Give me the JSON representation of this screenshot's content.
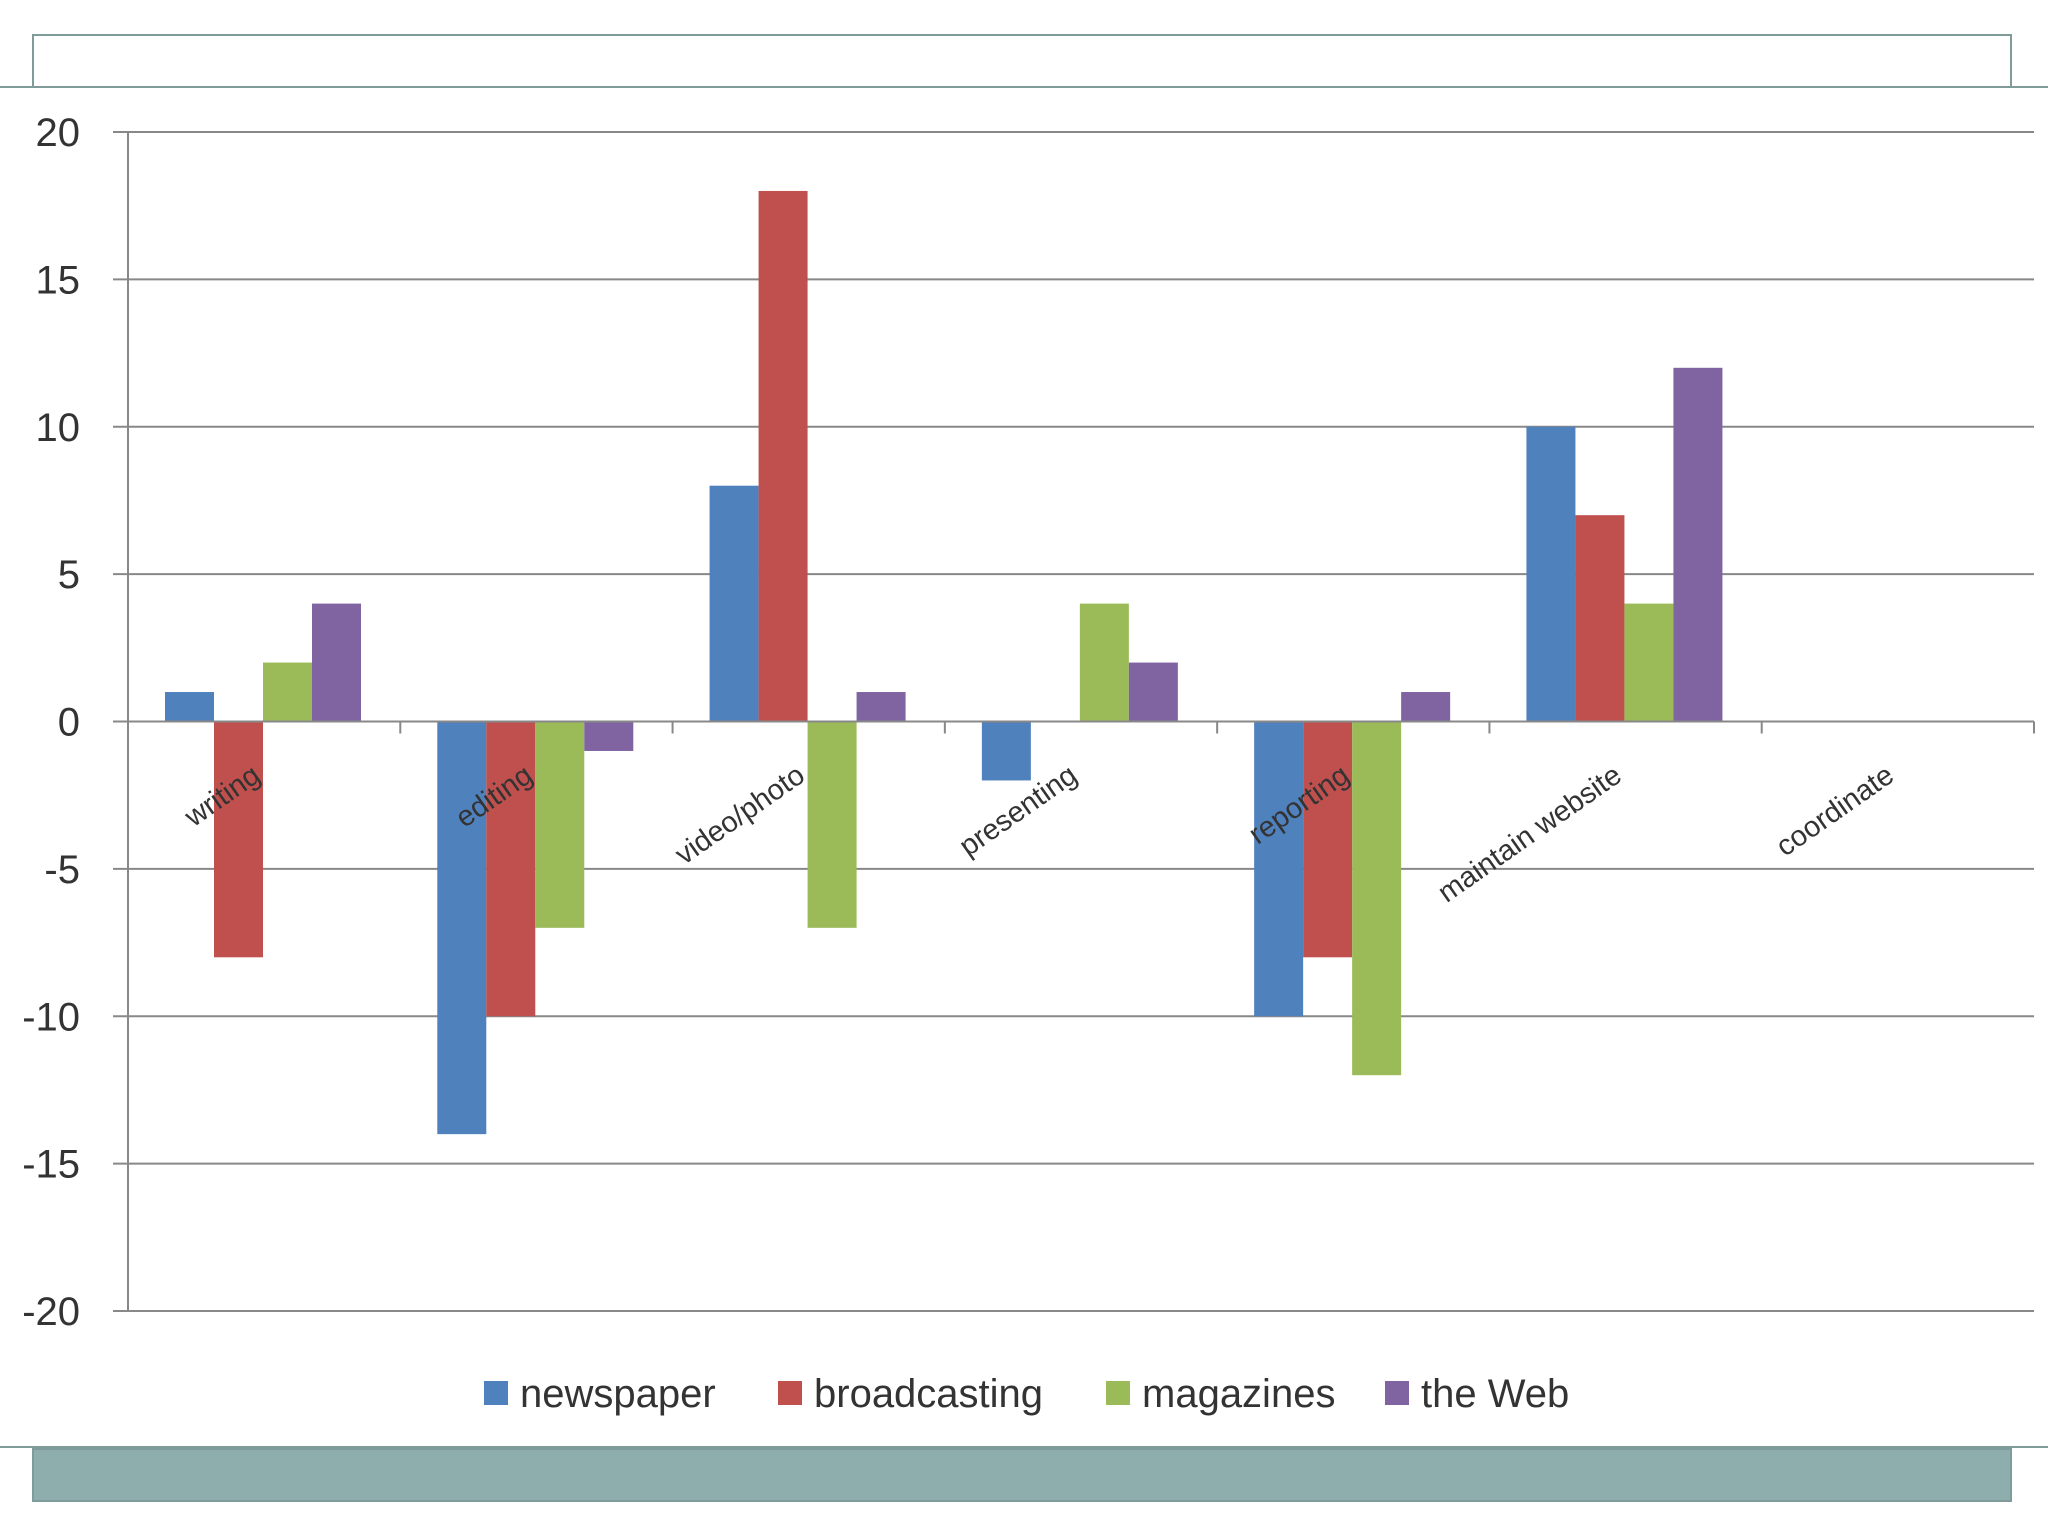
{
  "chart_data": {
    "type": "bar",
    "title": "",
    "xlabel": "",
    "ylabel": "",
    "categories": [
      "writing",
      "editing",
      "video/photo",
      "presenting",
      "reporting",
      "maintain website",
      "coordinate"
    ],
    "series": [
      {
        "name": "newspaper",
        "color": "#4f81bd",
        "values": [
          1,
          -14,
          8,
          -2,
          -10,
          10,
          0
        ]
      },
      {
        "name": "broadcasting",
        "color": "#c0504d",
        "values": [
          -8,
          -10,
          18,
          0,
          -8,
          7,
          0
        ]
      },
      {
        "name": "magazines",
        "color": "#9bbb59",
        "values": [
          2,
          -7,
          -7,
          4,
          -12,
          4,
          0
        ]
      },
      {
        "name": "the Web",
        "color": "#8064a2",
        "values": [
          4,
          -1,
          1,
          2,
          1,
          12,
          0
        ]
      }
    ],
    "ylim": [
      -20,
      20
    ],
    "yticks": [
      20,
      15,
      10,
      5,
      0,
      -5,
      -10,
      -15,
      -20
    ],
    "grid": true,
    "legend_position": "bottom"
  }
}
